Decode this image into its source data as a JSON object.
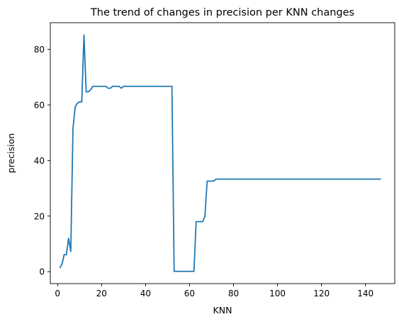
{
  "chart_data": {
    "type": "line",
    "title": "The trend of changes in precision per KNN changes",
    "xlabel": "KNN",
    "ylabel": "precision",
    "xlim": [
      -3.3,
      153.3
    ],
    "ylim": [
      -4.3,
      89.6
    ],
    "xticks": [
      0,
      20,
      40,
      60,
      80,
      100,
      120,
      140
    ],
    "yticks": [
      0,
      20,
      40,
      60,
      80
    ],
    "grid": false,
    "legend": "none",
    "series": [
      {
        "color": "#1f77b4",
        "x": [
          1,
          2,
          3,
          4,
          5,
          6,
          7,
          8,
          9,
          10,
          11,
          12,
          13,
          14,
          15,
          16,
          17,
          18,
          19,
          20,
          21,
          22,
          23,
          24,
          25,
          26,
          27,
          28,
          29,
          30,
          31,
          32,
          33,
          34,
          35,
          36,
          37,
          38,
          39,
          40,
          41,
          42,
          43,
          44,
          45,
          46,
          47,
          48,
          49,
          50,
          51,
          52,
          53,
          54,
          55,
          56,
          57,
          58,
          59,
          60,
          61,
          62,
          63,
          64,
          65,
          66,
          67,
          68,
          69,
          70,
          71,
          72,
          73,
          74,
          75,
          76,
          77,
          78,
          79,
          80,
          81,
          82,
          83,
          84,
          85,
          86,
          87,
          88,
          89,
          90,
          91,
          92,
          93,
          94,
          95,
          96,
          97,
          98,
          99,
          100,
          101,
          102,
          103,
          104,
          105,
          106,
          107,
          108,
          109,
          110,
          111,
          112,
          113,
          114,
          115,
          116,
          117,
          118,
          119,
          120,
          121,
          122,
          123,
          124,
          125,
          126,
          127,
          128,
          129,
          130,
          131,
          132,
          133,
          134,
          135,
          136,
          137,
          138,
          139,
          140,
          141,
          142,
          143,
          144,
          145,
          146,
          147
        ],
        "y": [
          1.3,
          2.7,
          6.1,
          6.1,
          12.0,
          7.3,
          51.5,
          59.3,
          60.6,
          61.1,
          61.1,
          85.2,
          64.7,
          64.7,
          65.4,
          66.7,
          66.7,
          66.7,
          66.7,
          66.7,
          66.7,
          66.7,
          66.0,
          66.0,
          66.7,
          66.7,
          66.7,
          66.7,
          66.0,
          66.7,
          66.7,
          66.7,
          66.7,
          66.7,
          66.7,
          66.7,
          66.7,
          66.7,
          66.7,
          66.7,
          66.7,
          66.7,
          66.7,
          66.7,
          66.7,
          66.7,
          66.7,
          66.7,
          66.7,
          66.7,
          66.7,
          66.7,
          0.1,
          0.1,
          0.1,
          0.1,
          0.1,
          0.1,
          0.1,
          0.1,
          0.1,
          0.1,
          18.0,
          18.0,
          18.0,
          18.0,
          20.0,
          32.6,
          32.6,
          32.6,
          32.6,
          33.3,
          33.3,
          33.3,
          33.3,
          33.3,
          33.3,
          33.3,
          33.3,
          33.3,
          33.3,
          33.3,
          33.3,
          33.3,
          33.3,
          33.3,
          33.3,
          33.3,
          33.3,
          33.3,
          33.3,
          33.3,
          33.3,
          33.3,
          33.3,
          33.3,
          33.3,
          33.3,
          33.3,
          33.3,
          33.3,
          33.3,
          33.3,
          33.3,
          33.3,
          33.3,
          33.3,
          33.3,
          33.3,
          33.3,
          33.3,
          33.3,
          33.3,
          33.3,
          33.3,
          33.3,
          33.3,
          33.3,
          33.3,
          33.3,
          33.3,
          33.3,
          33.3,
          33.3,
          33.3,
          33.3,
          33.3,
          33.3,
          33.3,
          33.3,
          33.3,
          33.3,
          33.3,
          33.3,
          33.3,
          33.3,
          33.3,
          33.3,
          33.3,
          33.3,
          33.3,
          33.3,
          33.3,
          33.3,
          33.3,
          33.3,
          33.3
        ]
      }
    ]
  }
}
